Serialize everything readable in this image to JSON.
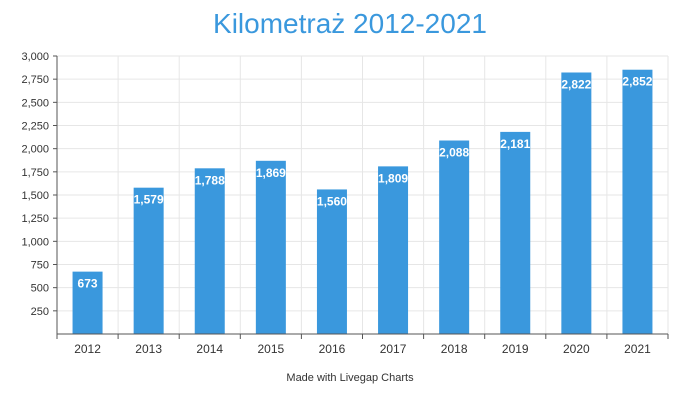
{
  "chart_data": {
    "type": "bar",
    "title": "Kilometraż 2012-2021",
    "categories": [
      "2012",
      "2013",
      "2014",
      "2015",
      "2016",
      "2017",
      "2018",
      "2019",
      "2020",
      "2021"
    ],
    "values": [
      673,
      1579,
      1788,
      1869,
      1560,
      1809,
      2088,
      2181,
      2822,
      2852
    ],
    "value_labels": [
      "673",
      "1,579",
      "1,788",
      "1,869",
      "1,560",
      "1,809",
      "2,088",
      "2,181",
      "2,822",
      "2,852"
    ],
    "yticks": [
      250,
      500,
      750,
      1000,
      1250,
      1500,
      1750,
      2000,
      2250,
      2500,
      2750,
      3000
    ],
    "ytick_labels": [
      "250",
      "500",
      "750",
      "1,000",
      "1,250",
      "1,500",
      "1,750",
      "2,000",
      "2,250",
      "2,500",
      "2,750",
      "3,000"
    ],
    "ylim": [
      0,
      3000
    ],
    "xlabel": "",
    "ylabel": "",
    "grid": true,
    "legend": "none",
    "colors": {
      "bar": "#3a98dd",
      "title": "#3a98dd",
      "grid": "#e6e6e6",
      "axis": "#555555"
    }
  },
  "footer": {
    "credit": "Made with Livegap Charts"
  }
}
